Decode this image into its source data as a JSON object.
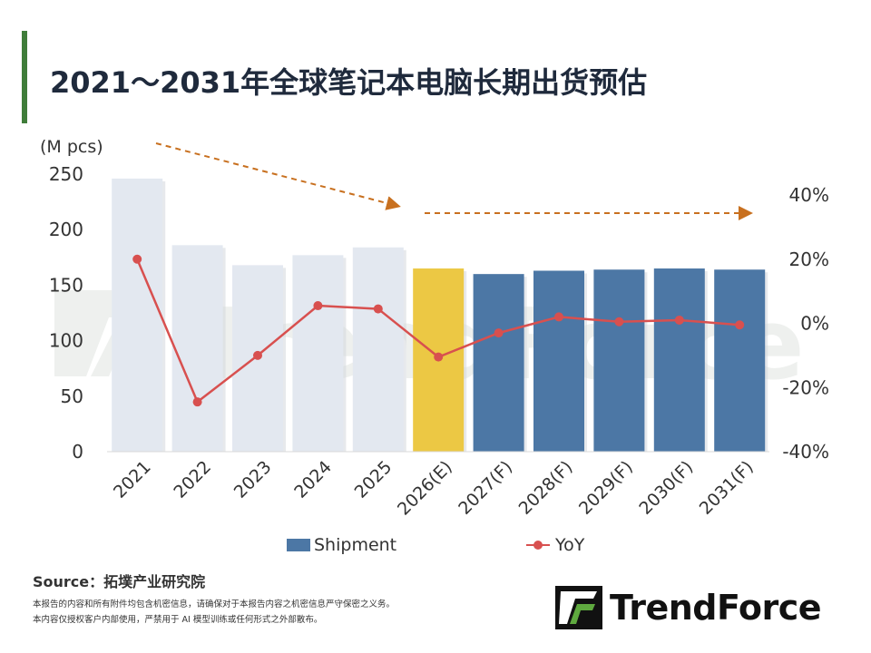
{
  "title": "2021～2031年全球笔记本电脑长期出货预估",
  "colors": {
    "accent_bar": "#3f7d3a",
    "bar_history": "#e3e8f0",
    "bar_current": "#ecc844",
    "bar_forecast": "#4c77a5",
    "yoy_line": "#d8504f",
    "trend_arrow": "#c8701f",
    "watermark": "#eef0ee"
  },
  "watermark_text": "TrendForce",
  "chart_data": {
    "type": "bar",
    "title": "",
    "xlabel": "",
    "ylabel": "(M pcs)",
    "categories": [
      "2021",
      "2022",
      "2023",
      "2024",
      "2025",
      "2026(E)",
      "2027(F)",
      "2028(F)",
      "2029(F)",
      "2030(F)",
      "2031(F)"
    ],
    "ylim": [
      0,
      250
    ],
    "y_ticks": [
      "0",
      "50",
      "100",
      "150",
      "200",
      "250"
    ],
    "y2lim": [
      -40,
      40
    ],
    "y2_ticks": [
      "-40%",
      "-20%",
      "0%",
      "20%",
      "40%"
    ],
    "bar_types": [
      "history",
      "history",
      "history",
      "history",
      "history",
      "current",
      "forecast",
      "forecast",
      "forecast",
      "forecast",
      "forecast"
    ],
    "series": [
      {
        "name": "Shipment",
        "type": "bar",
        "axis": "left",
        "values": [
          246,
          186,
          168,
          177,
          184,
          165,
          160,
          163,
          164,
          165,
          164
        ]
      },
      {
        "name": "YoY",
        "type": "line",
        "axis": "right",
        "values": [
          20,
          -24.5,
          -10,
          5.5,
          4.5,
          -10.5,
          -3,
          2,
          0.5,
          1,
          -0.5
        ]
      }
    ],
    "legend_position": "bottom",
    "grid": false
  },
  "source": "Source：拓墣产业研究院",
  "disclaimer": [
    "本报告的内容和所有附件均包含机密信息，请确保对于本报告内容之机密信息严守保密之义务。",
    "本内容仅授权客户内部使用，严禁用于 AI 模型训练或任何形式之外部散布。"
  ],
  "logo_text": "TrendForce"
}
